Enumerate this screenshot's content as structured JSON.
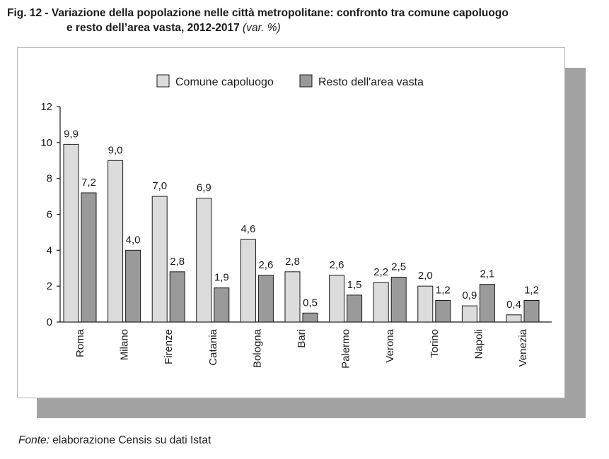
{
  "figure": {
    "title_main": "Fig. 12 - Variazione della popolazione nelle città metropolitane: confronto tra comune capoluogo",
    "title_cont": "e resto dell’area vasta, 2012-2017",
    "title_unit": "(var. %)"
  },
  "source": {
    "label": "Fonte:",
    "text": "elaborazione Censis su dati Istat"
  },
  "colors": {
    "series_1": "#dcdcdc",
    "series_2": "#9a9a9a",
    "shadow": "#a3a3a3",
    "stroke": "#1a1a1a"
  },
  "chart_data": {
    "type": "bar",
    "title": "",
    "xlabel": "",
    "ylabel": "",
    "ylim": [
      0,
      12
    ],
    "yticks": [
      0,
      2,
      4,
      6,
      8,
      10,
      12
    ],
    "grid": false,
    "legend_position": "top",
    "categories": [
      "Roma",
      "Milano",
      "Firenze",
      "Catania",
      "Bologna",
      "Bari",
      "Palermo",
      "Verona",
      "Torino",
      "Napoli",
      "Venezia"
    ],
    "series": [
      {
        "name": "Comune capoluogo",
        "values": [
          9.9,
          9.0,
          7.0,
          6.9,
          4.6,
          2.8,
          2.6,
          2.2,
          2.0,
          0.9,
          0.4
        ],
        "labels": [
          "9,9",
          "9,0",
          "7,0",
          "6,9",
          "4,6",
          "2,8",
          "2,6",
          "2,2",
          "2,0",
          "0,9",
          "0,4"
        ]
      },
      {
        "name": "Resto dell'area vasta",
        "values": [
          7.2,
          4.0,
          2.8,
          1.9,
          2.6,
          0.5,
          1.5,
          2.5,
          1.2,
          2.1,
          1.2
        ],
        "labels": [
          "7,2",
          "4,0",
          "2,8",
          "1,9",
          "2,6",
          "0,5",
          "1,5",
          "2,5",
          "1,2",
          "2,1",
          "1,2"
        ]
      }
    ]
  }
}
